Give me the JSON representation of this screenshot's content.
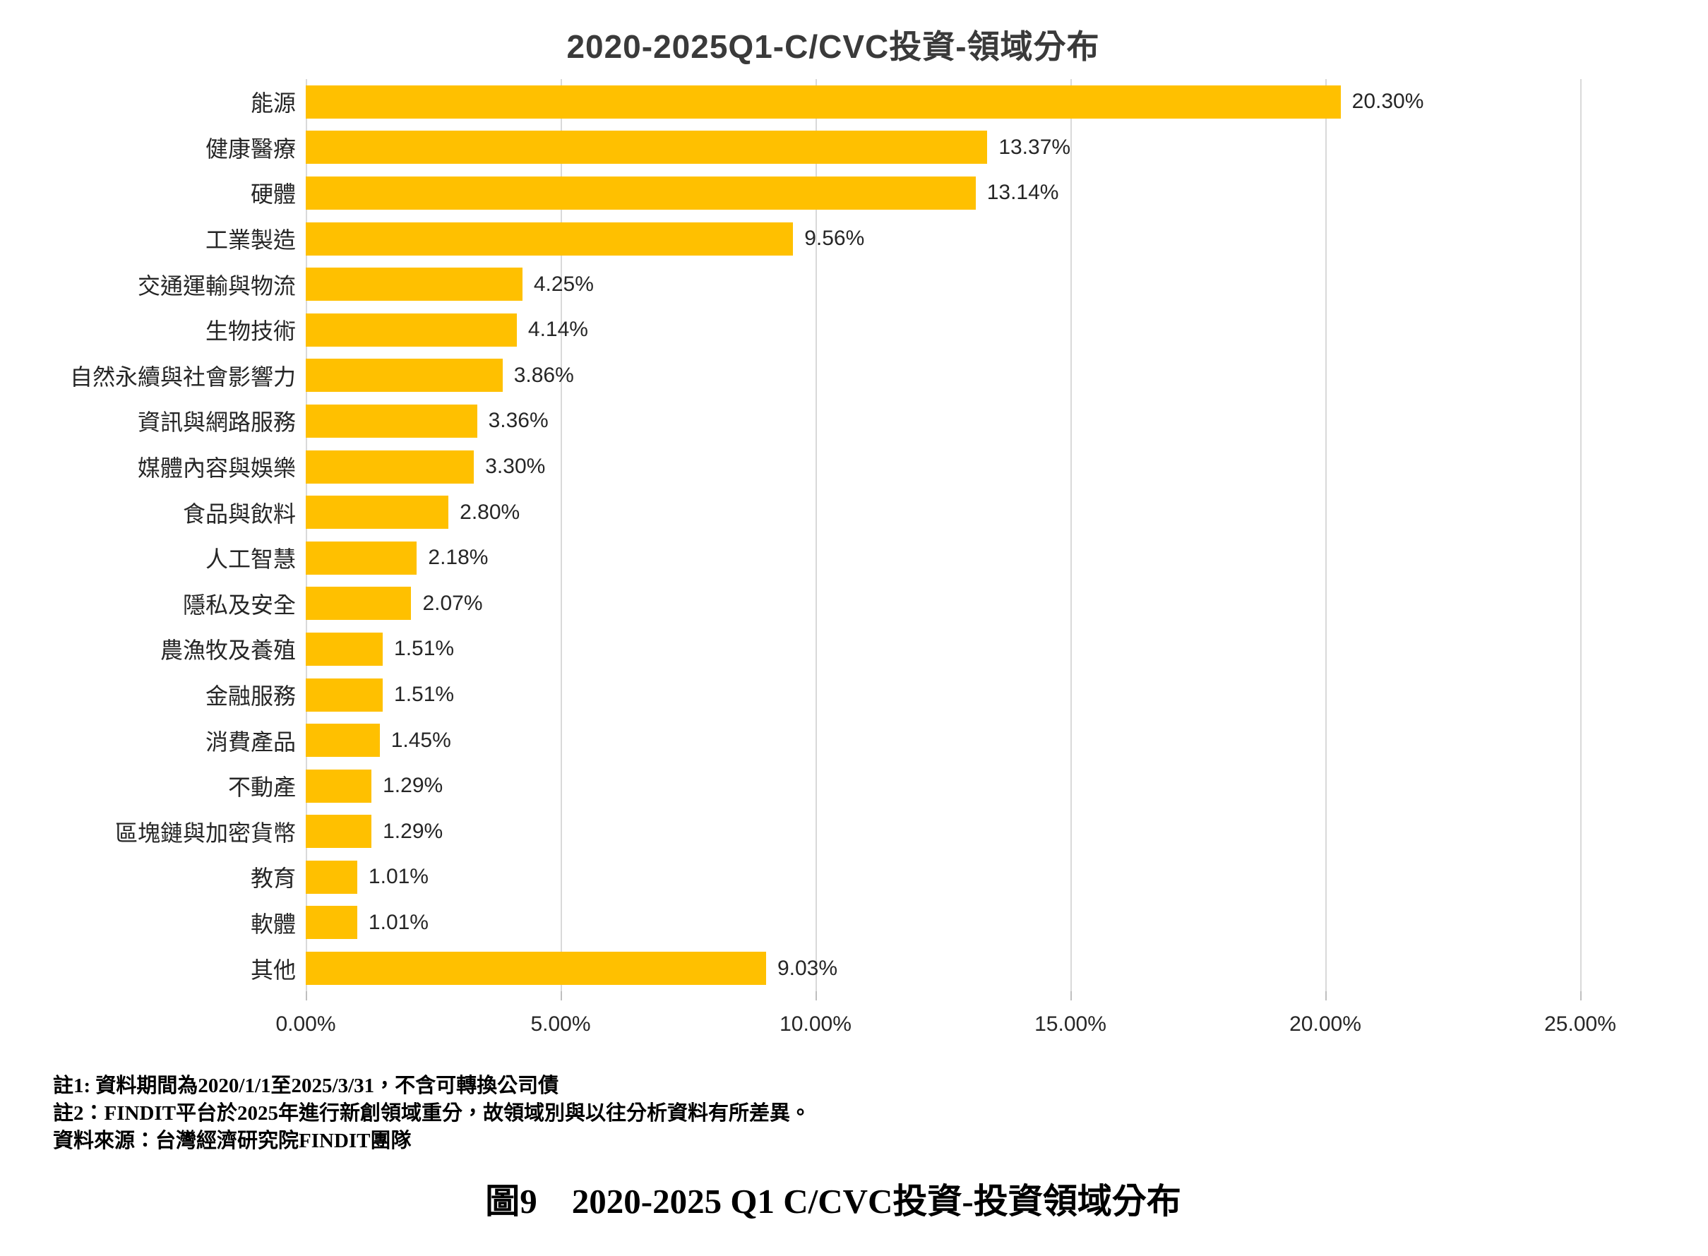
{
  "title": "2020-2025Q1-C/CVC投資-領域分布",
  "chart_data": {
    "type": "bar",
    "orientation": "horizontal",
    "title": "2020-2025Q1-C/CVC投資-領域分布",
    "categories": [
      "能源",
      "健康醫療",
      "硬體",
      "工業製造",
      "交通運輸與物流",
      "生物技術",
      "自然永續與社會影響力",
      "資訊與網路服務",
      "媒體內容與娛樂",
      "食品與飲料",
      "人工智慧",
      "隱私及安全",
      "農漁牧及養殖",
      "金融服務",
      "消費產品",
      "不動產",
      "區塊鏈與加密貨幣",
      "教育",
      "軟體",
      "其他"
    ],
    "values": [
      20.3,
      13.37,
      13.14,
      9.56,
      4.25,
      4.14,
      3.86,
      3.36,
      3.3,
      2.8,
      2.18,
      2.07,
      1.51,
      1.51,
      1.45,
      1.29,
      1.29,
      1.01,
      1.01,
      9.03
    ],
    "value_labels": [
      "20.30%",
      "13.37%",
      "13.14%",
      "9.56%",
      "4.25%",
      "4.14%",
      "3.86%",
      "3.36%",
      "3.30%",
      "2.80%",
      "2.18%",
      "2.07%",
      "1.51%",
      "1.51%",
      "1.45%",
      "1.29%",
      "1.29%",
      "1.01%",
      "1.01%",
      "9.03%"
    ],
    "xlabel": "",
    "ylabel": "",
    "xlim": [
      0,
      25
    ],
    "x_ticks": [
      "0.00%",
      "5.00%",
      "10.00%",
      "15.00%",
      "20.00%",
      "25.00%"
    ],
    "x_tick_values": [
      0,
      5,
      10,
      15,
      20,
      25
    ],
    "grid": true,
    "legend": false,
    "bar_color": "#FFC000",
    "gridline_color": "#D9D9D9",
    "tick_color": "#BFBFBF"
  },
  "notes": {
    "line1": "註1: 資料期間為2020/1/1至2025/3/31，不含可轉換公司債",
    "line2": "註2：FINDIT平台於2025年進行新創領域重分，故領域別與以往分析資料有所差異。",
    "line3": "資料來源：台灣經濟研究院FINDIT團隊"
  },
  "caption": "圖9　2020-2025 Q1  C/CVC投資-投資領域分布"
}
